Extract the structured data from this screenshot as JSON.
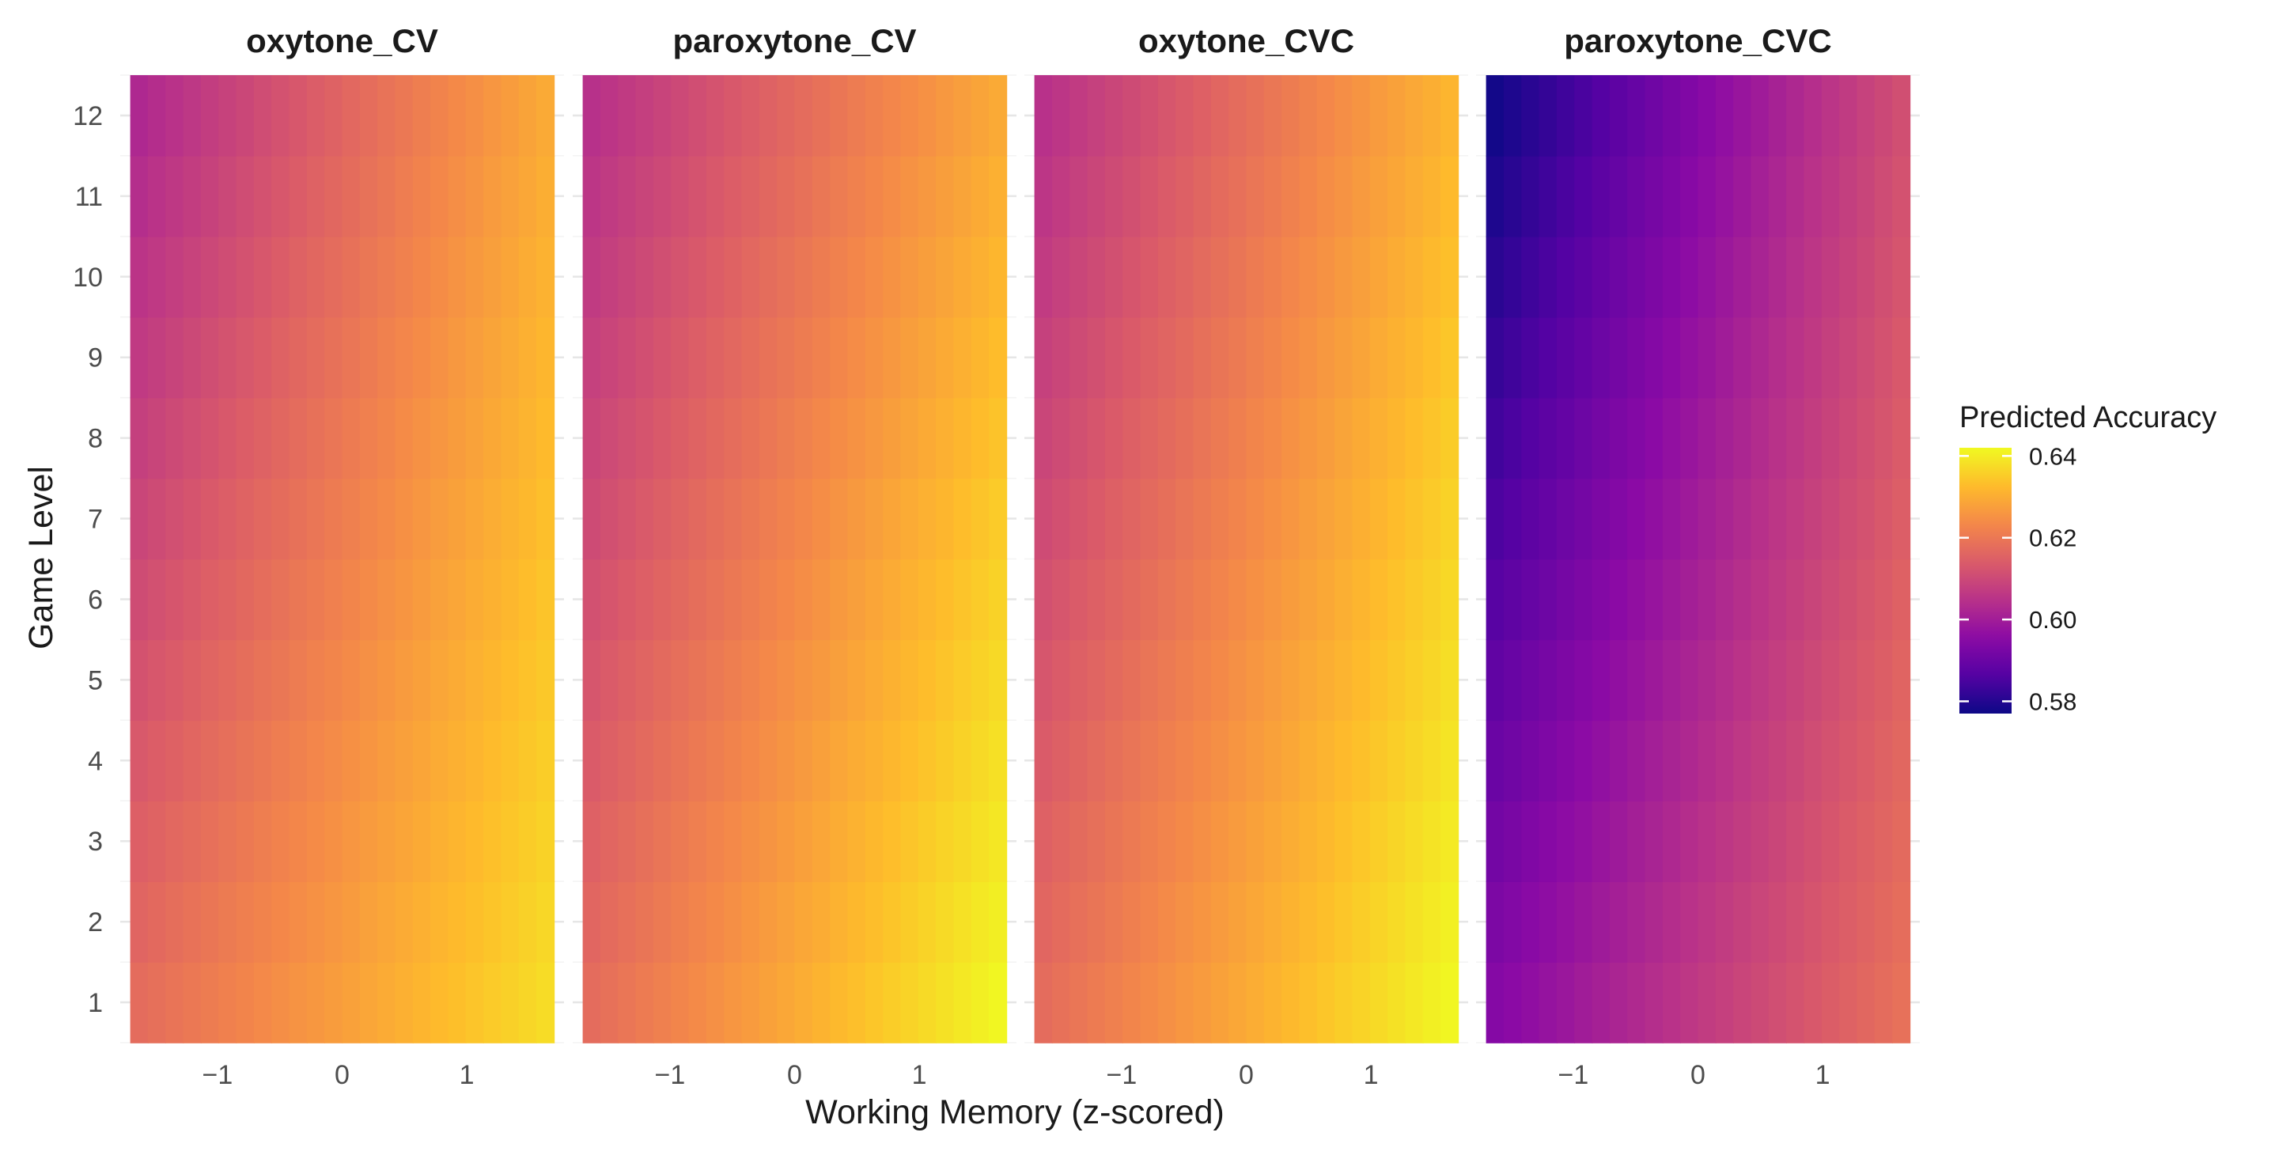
{
  "chart_data": {
    "type": "heatmap",
    "xlabel": "Working Memory (z-scored)",
    "ylabel": "Game Level",
    "x_ticks": [
      -1,
      0,
      1
    ],
    "x_tick_labels": [
      "−1",
      "0",
      "1"
    ],
    "xlim": [
      -1.78,
      1.78
    ],
    "y_ticks": [
      1,
      2,
      3,
      4,
      5,
      6,
      7,
      8,
      9,
      10,
      11,
      12
    ],
    "ylim": [
      0.5,
      12.5
    ],
    "grid": true,
    "colormap": "plasma",
    "legend": {
      "title": "Predicted Accuracy",
      "position": "right",
      "range": [
        0.577,
        0.642
      ],
      "breaks": [
        0.58,
        0.6,
        0.62,
        0.64
      ],
      "break_labels": [
        "0.58",
        "0.60",
        "0.62",
        "0.64"
      ]
    },
    "facets": [
      {
        "title": "oxytone_CV",
        "x": [
          -1.7,
          1.7
        ],
        "levels": [
          1,
          12
        ],
        "corners": {
          "low_x_low_level": 0.617,
          "high_x_low_level": 0.638,
          "low_x_high_level": 0.602,
          "high_x_high_level": 0.63
        }
      },
      {
        "title": "paroxytone_CV",
        "x": [
          -1.7,
          1.7
        ],
        "levels": [
          1,
          12
        ],
        "corners": {
          "low_x_low_level": 0.617,
          "high_x_low_level": 0.642,
          "low_x_high_level": 0.604,
          "high_x_high_level": 0.63
        }
      },
      {
        "title": "oxytone_CVC",
        "x": [
          -1.7,
          1.7
        ],
        "levels": [
          1,
          12
        ],
        "corners": {
          "low_x_low_level": 0.617,
          "high_x_low_level": 0.642,
          "low_x_high_level": 0.604,
          "high_x_high_level": 0.632
        }
      },
      {
        "title": "paroxytone_CVC",
        "x": [
          -1.7,
          1.7
        ],
        "levels": [
          1,
          12
        ],
        "corners": {
          "low_x_low_level": 0.594,
          "high_x_low_level": 0.619,
          "low_x_high_level": 0.577,
          "high_x_high_level": 0.612
        }
      }
    ]
  }
}
